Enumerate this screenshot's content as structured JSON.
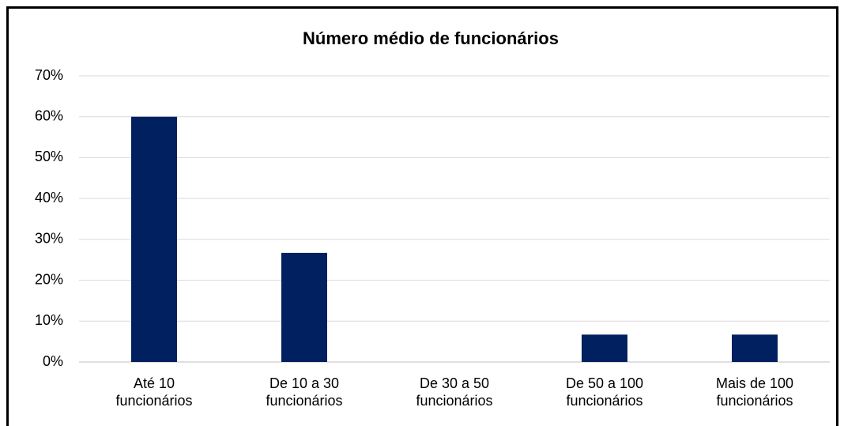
{
  "chart_data": {
    "type": "bar",
    "title": "Número médio de funcionários",
    "categories": [
      "Até 10 funcionários",
      "De 10 a 30 funcionários",
      "De 30 a 50 funcionários",
      "De 50 a 100 funcionários",
      "Mais de 100 funcionários"
    ],
    "values": [
      60,
      26.7,
      0,
      6.7,
      6.7
    ],
    "color": "#002060",
    "ylim": [
      0,
      70
    ],
    "yticks": [
      {
        "value": 0,
        "label": "0%"
      },
      {
        "value": 10,
        "label": "10%"
      },
      {
        "value": 20,
        "label": "20%"
      },
      {
        "value": 30,
        "label": "30%"
      },
      {
        "value": 40,
        "label": "40%"
      },
      {
        "value": 50,
        "label": "50%"
      },
      {
        "value": 60,
        "label": "60%"
      },
      {
        "value": 70,
        "label": "70%"
      }
    ],
    "grid": true
  }
}
